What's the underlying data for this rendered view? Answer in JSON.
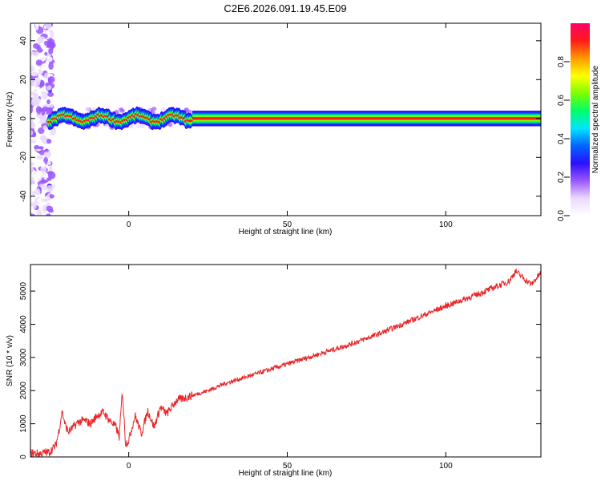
{
  "page": {
    "title": "C2E6.2026.091.19.45.E09"
  },
  "chart_data": [
    {
      "type": "heatmap",
      "xlabel": "Height of straight line (km)",
      "ylabel": "Frequency (Hz)",
      "xlim": [
        -31,
        130
      ],
      "ylim": [
        -50,
        49
      ],
      "xticks": [
        0,
        50,
        100
      ],
      "yticks": [
        -40,
        -20,
        0,
        20,
        40
      ],
      "colorbar": {
        "label": "Normalized spectral amplitude",
        "range": [
          0.0,
          1.0
        ],
        "ticks": [
          0.0,
          0.2,
          0.4,
          0.6,
          0.8
        ],
        "colormap": [
          "#ffffff",
          "#e9d9ff",
          "#9a55ff",
          "#2a10ff",
          "#0066ff",
          "#00e5ff",
          "#00ff66",
          "#7dff00",
          "#ffff00",
          "#ff9900",
          "#ff1a1a",
          "#ff0066"
        ]
      },
      "ridge_frequency_hz": 0,
      "scatter_band_km": [
        -31,
        -24
      ]
    },
    {
      "type": "line",
      "xlabel": "Height of straight line (km)",
      "ylabel": "SNR (10 * v/v)",
      "xlim": [
        -31,
        130
      ],
      "ylim": [
        0,
        5800
      ],
      "xticks": [
        0,
        50,
        100
      ],
      "yticks": [
        0,
        1000,
        2000,
        3000,
        4000,
        5000
      ],
      "color": "#e8272a",
      "series": [
        {
          "x": [
            -31,
            -28,
            -25,
            -23,
            -22,
            -21,
            -20,
            -19,
            -18,
            -16,
            -14,
            -12,
            -10,
            -8,
            -6,
            -4,
            -3,
            -2,
            -1,
            0,
            2,
            4,
            6,
            8,
            10,
            12,
            15,
            20,
            25,
            30,
            35,
            40,
            50,
            60,
            70,
            80,
            90,
            100,
            110,
            120,
            122,
            125,
            127,
            130
          ],
          "y": [
            120,
            100,
            150,
            350,
            800,
            1380,
            950,
            750,
            850,
            1050,
            1100,
            1000,
            1250,
            1350,
            1100,
            900,
            600,
            2000,
            400,
            500,
            1250,
            700,
            1400,
            900,
            1500,
            1300,
            1700,
            1850,
            2000,
            2200,
            2350,
            2500,
            2800,
            3100,
            3400,
            3750,
            4150,
            4550,
            4900,
            5300,
            5600,
            5350,
            5200,
            5550
          ]
        }
      ]
    }
  ]
}
